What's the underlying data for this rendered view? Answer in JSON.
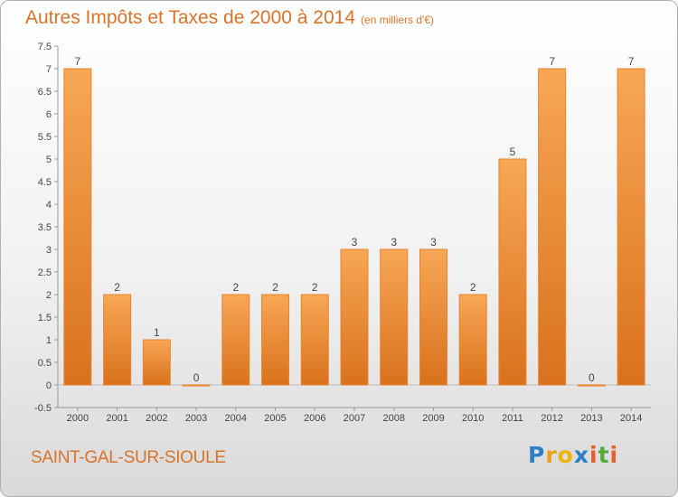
{
  "chart_data": {
    "type": "bar",
    "title": "Autres Impôts et Taxes de 2000 à 2014",
    "subtitle": "(en milliers d'€)",
    "categories": [
      "2000",
      "2001",
      "2002",
      "2003",
      "2004",
      "2005",
      "2006",
      "2007",
      "2008",
      "2009",
      "2010",
      "2011",
      "2012",
      "2013",
      "2014"
    ],
    "values": [
      7,
      2,
      1,
      0,
      2,
      2,
      2,
      3,
      3,
      3,
      2,
      5,
      7,
      0,
      7
    ],
    "data_labels": [
      "7",
      "2",
      "1",
      "0",
      "2",
      "2",
      "2",
      "3",
      "3",
      "3",
      "2",
      "5",
      "7",
      "0",
      "7"
    ],
    "yticks": [
      "7.5",
      "7",
      "6.5",
      "6",
      "5.5",
      "5",
      "4.5",
      "4",
      "3.5",
      "3",
      "2.5",
      "2",
      "1.5",
      "1",
      "0.5",
      "0",
      "-0.5"
    ],
    "ylim": [
      -0.5,
      7.5
    ],
    "xlabel": "",
    "ylabel": "",
    "grid": false,
    "bar_color": "#f0923a"
  },
  "footer": {
    "place_name": "SAINT-GAL-SUR-SIOULE"
  },
  "logo": {
    "text": "Proxiti",
    "letters": [
      "P",
      "r",
      "o",
      "x",
      "i",
      "t",
      "i"
    ],
    "colors": [
      "#2b7fc4",
      "#e8a21a",
      "#f0b400",
      "#2b7fc4",
      "#e85d2a",
      "#58a83a",
      "#e85d2a"
    ]
  }
}
